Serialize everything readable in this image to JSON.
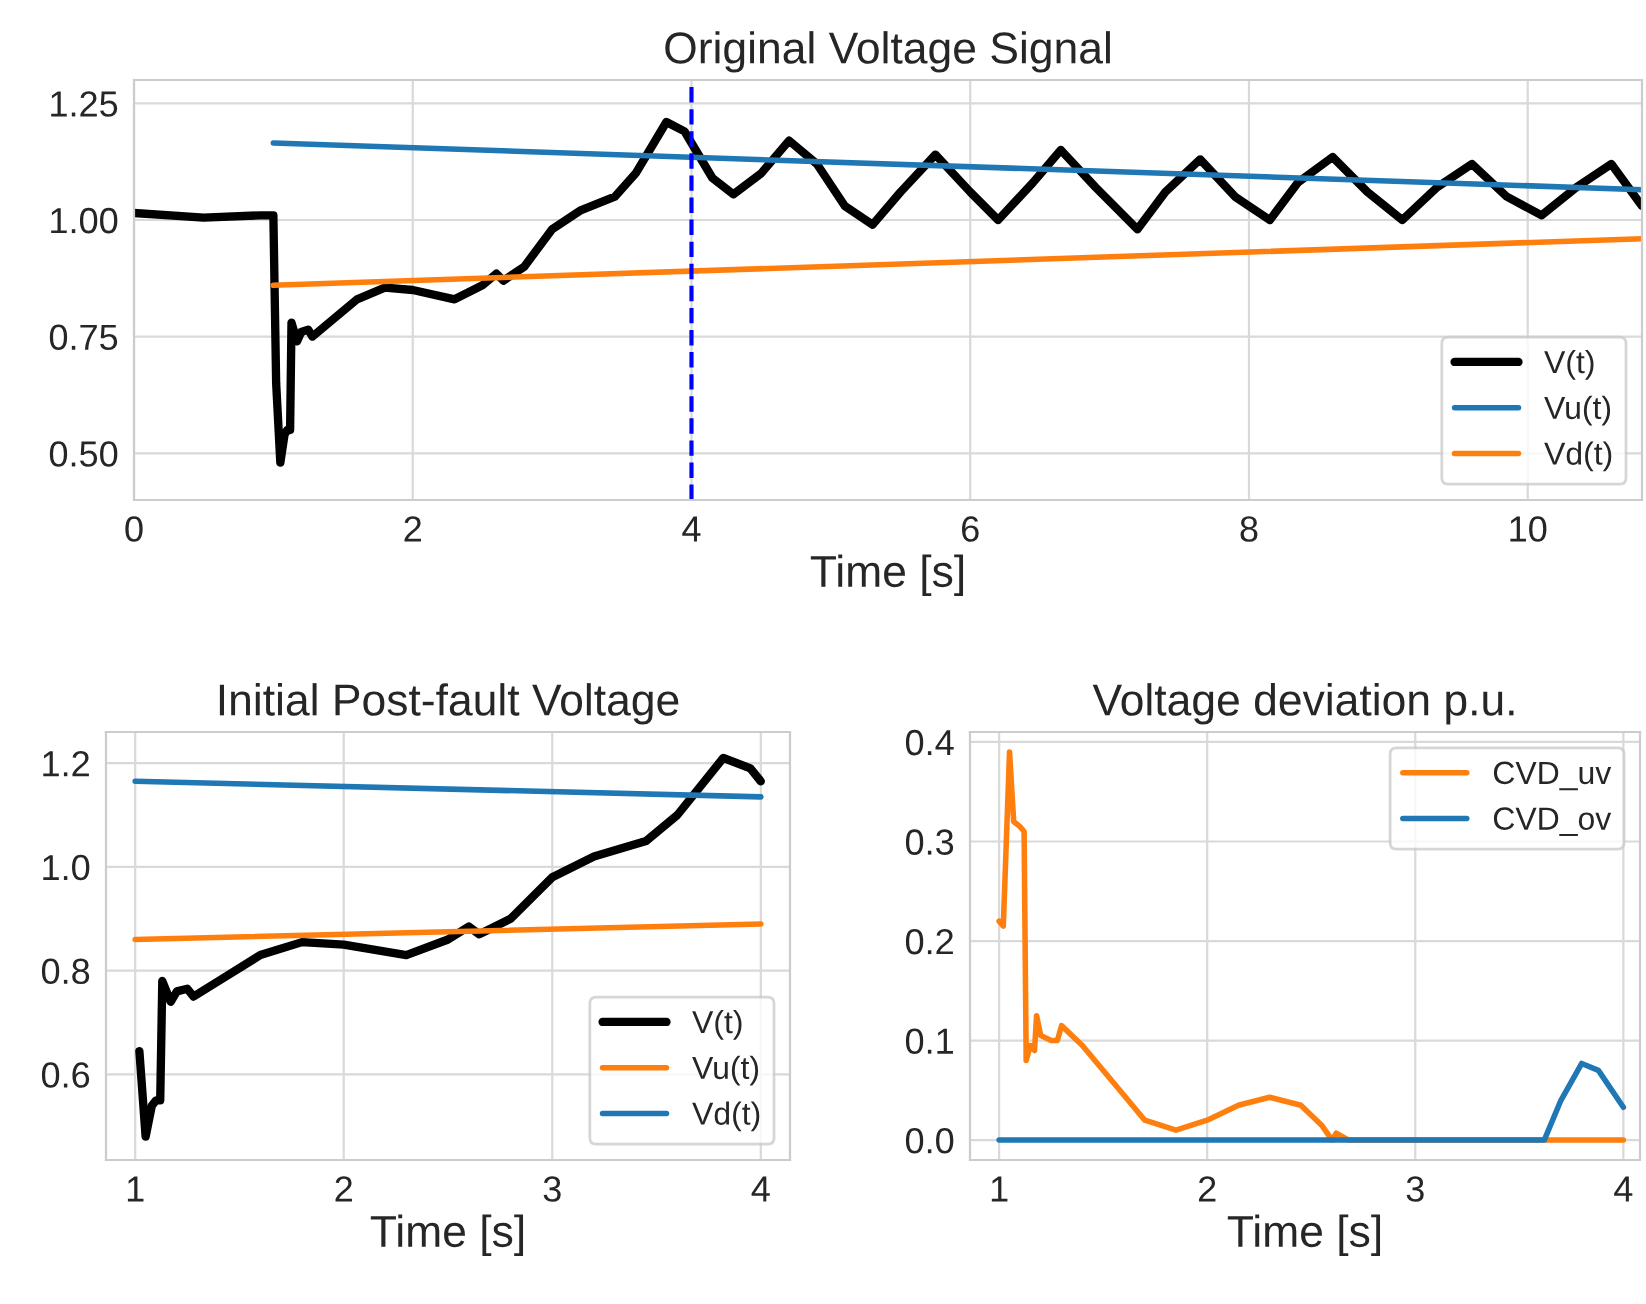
{
  "chart_data": [
    {
      "type": "line",
      "title": "Original Voltage Signal",
      "xlabel": "Time [s]",
      "xlim": [
        0,
        10.82
      ],
      "ylim": [
        0.4,
        1.3
      ],
      "xticks": [
        0,
        2,
        4,
        6,
        8,
        10
      ],
      "yticks": [
        {
          "value": 0.5,
          "label": "0.50"
        },
        {
          "value": 0.75,
          "label": "0.75"
        },
        {
          "value": 1.0,
          "label": "1.00"
        },
        {
          "value": 1.25,
          "label": "1.25"
        }
      ],
      "grid": true,
      "legend": "bottom right",
      "ref_lines": [
        {
          "axis": "x",
          "value": 4,
          "color": "#0000ff",
          "line_style": "dashed"
        }
      ],
      "series": [
        {
          "name": "V(t)",
          "color": "#000000",
          "x": [
            0,
            0.5,
            0.9,
            1.0,
            1.02,
            1.05,
            1.08,
            1.1,
            1.12,
            1.13,
            1.17,
            1.2,
            1.25,
            1.28,
            1.4,
            1.6,
            1.8,
            2.0,
            2.3,
            2.5,
            2.6,
            2.65,
            2.8,
            3.0,
            3.2,
            3.45,
            3.6,
            3.82,
            3.95,
            4.0,
            4.15,
            4.3,
            4.5,
            4.7,
            4.9,
            5.1,
            5.3,
            5.5,
            5.75,
            6.0,
            6.2,
            6.45,
            6.65,
            6.9,
            7.2,
            7.4,
            7.65,
            7.9,
            8.15,
            8.35,
            8.6,
            8.85,
            9.1,
            9.35,
            9.6,
            9.85,
            10.1,
            10.35,
            10.6,
            10.82
          ],
          "values": [
            1.015,
            1.005,
            1.01,
            1.01,
            0.65,
            0.48,
            0.54,
            0.55,
            0.55,
            0.78,
            0.74,
            0.76,
            0.765,
            0.75,
            0.78,
            0.83,
            0.855,
            0.85,
            0.83,
            0.86,
            0.885,
            0.87,
            0.9,
            0.98,
            1.02,
            1.05,
            1.1,
            1.21,
            1.19,
            1.165,
            1.09,
            1.055,
            1.1,
            1.17,
            1.12,
            1.03,
            0.99,
            1.06,
            1.14,
            1.06,
            1.0,
            1.08,
            1.15,
            1.07,
            0.98,
            1.06,
            1.13,
            1.05,
            1.0,
            1.08,
            1.135,
            1.06,
            1.0,
            1.07,
            1.12,
            1.05,
            1.01,
            1.07,
            1.12,
            1.03
          ]
        },
        {
          "name": "Vu(t)",
          "color": "#1f77b4",
          "x": [
            1.0,
            10.82
          ],
          "values": [
            1.165,
            1.065
          ]
        },
        {
          "name": "Vd(t)",
          "color": "#ff7f0e",
          "x": [
            1.0,
            10.82
          ],
          "values": [
            0.86,
            0.96
          ]
        }
      ]
    },
    {
      "type": "line",
      "title": "Initial Post-fault Voltage",
      "xlabel": "Time [s]",
      "xlim": [
        0.86,
        4.14
      ],
      "ylim": [
        0.435,
        1.26
      ],
      "xticks": [
        1,
        2,
        3,
        4
      ],
      "yticks": [
        0.6,
        0.8,
        {
          "value": 1.0,
          "label": "1.0"
        },
        1.2
      ],
      "grid": true,
      "legend": "bottom right",
      "series": [
        {
          "name": "V(t)",
          "color": "#000000",
          "x": [
            1.02,
            1.05,
            1.08,
            1.1,
            1.12,
            1.13,
            1.17,
            1.2,
            1.25,
            1.28,
            1.4,
            1.6,
            1.8,
            2.0,
            2.3,
            2.5,
            2.6,
            2.65,
            2.8,
            3.0,
            3.2,
            3.45,
            3.6,
            3.82,
            3.95,
            4.0
          ],
          "values": [
            0.645,
            0.48,
            0.54,
            0.55,
            0.55,
            0.78,
            0.74,
            0.76,
            0.765,
            0.75,
            0.78,
            0.83,
            0.855,
            0.85,
            0.83,
            0.86,
            0.885,
            0.87,
            0.9,
            0.98,
            1.02,
            1.05,
            1.1,
            1.21,
            1.19,
            1.165
          ]
        },
        {
          "name": "Vu(t)",
          "color": "#ff7f0e",
          "x": [
            1.0,
            4.0
          ],
          "values": [
            0.86,
            0.89
          ]
        },
        {
          "name": "Vd(t)",
          "color": "#1f77b4",
          "x": [
            1.0,
            4.0
          ],
          "values": [
            1.165,
            1.135
          ]
        }
      ]
    },
    {
      "type": "line",
      "title": "Voltage deviation p.u.",
      "xlabel": "Time [s]",
      "xlim": [
        0.86,
        4.08
      ],
      "ylim": [
        -0.02,
        0.41
      ],
      "xticks": [
        1,
        2,
        3,
        4
      ],
      "yticks": [
        {
          "value": 0.0,
          "label": "0.0"
        },
        0.1,
        0.2,
        0.3,
        0.4
      ],
      "grid": true,
      "legend": "top right",
      "series": [
        {
          "name": "CVD_uv",
          "color": "#ff7f0e",
          "x": [
            1.0,
            1.02,
            1.05,
            1.07,
            1.1,
            1.12,
            1.13,
            1.15,
            1.17,
            1.18,
            1.2,
            1.25,
            1.28,
            1.3,
            1.4,
            1.6,
            1.7,
            1.85,
            2.0,
            2.15,
            2.3,
            2.45,
            2.55,
            2.6,
            2.62,
            2.68,
            4.0
          ],
          "values": [
            0.22,
            0.215,
            0.39,
            0.32,
            0.315,
            0.31,
            0.08,
            0.095,
            0.09,
            0.125,
            0.105,
            0.1,
            0.1,
            0.115,
            0.095,
            0.045,
            0.02,
            0.01,
            0.02,
            0.035,
            0.043,
            0.035,
            0.015,
            0.0,
            0.007,
            0.0,
            0.0
          ]
        },
        {
          "name": "CVD_ov",
          "color": "#1f77b4",
          "x": [
            1.0,
            3.62,
            3.7,
            3.8,
            3.88,
            4.0
          ],
          "values": [
            0.0,
            0.0,
            0.04,
            0.077,
            0.07,
            0.033
          ]
        }
      ]
    }
  ]
}
